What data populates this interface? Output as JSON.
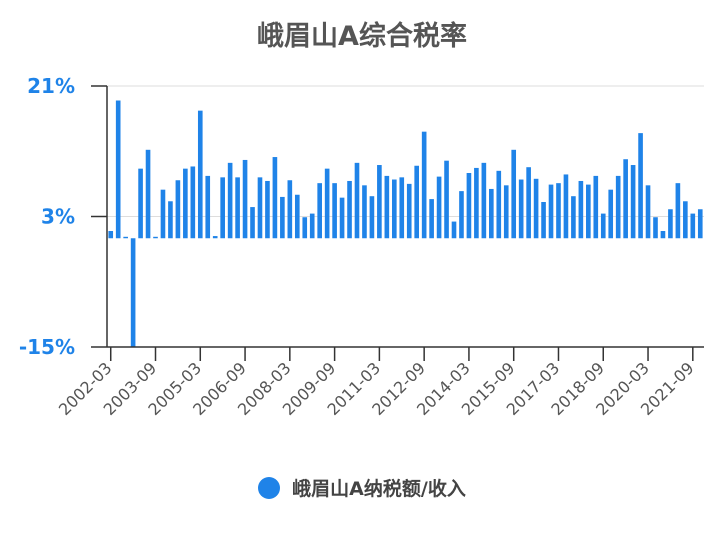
{
  "chart_data": {
    "type": "bar",
    "title": "峨眉山A综合税率",
    "xlabel": "",
    "ylabel": "",
    "ylim": [
      -15,
      21
    ],
    "yticks": [
      "21%",
      "3%",
      "-15%"
    ],
    "x_tick_labels": [
      "2002-03",
      "2003-09",
      "2005-03",
      "2006-09",
      "2008-03",
      "2009-09",
      "2011-03",
      "2012-09",
      "2014-03",
      "2015-09",
      "2017-03",
      "2018-09",
      "2020-03",
      "2021-09"
    ],
    "grid": true,
    "legend_position": "bottom",
    "bar_color": "#1f83e8",
    "series": [
      {
        "name": "峨眉山A纳税额/收入",
        "values": [
          1.0,
          19.0,
          0.2,
          -15.0,
          9.6,
          12.2,
          0.2,
          6.7,
          5.1,
          8.0,
          9.6,
          9.9,
          17.6,
          8.6,
          0.3,
          8.4,
          10.4,
          8.4,
          10.8,
          4.3,
          8.4,
          7.9,
          11.2,
          5.7,
          8.0,
          6.0,
          2.9,
          3.4,
          7.6,
          9.6,
          7.6,
          5.6,
          7.9,
          10.4,
          7.3,
          5.8,
          10.1,
          8.6,
          8.1,
          8.4,
          7.5,
          10.0,
          14.7,
          5.4,
          8.5,
          10.7,
          2.3,
          6.5,
          9.0,
          9.7,
          10.4,
          6.8,
          9.3,
          7.3,
          12.2,
          8.1,
          9.8,
          8.2,
          5.0,
          7.4,
          7.6,
          8.8,
          5.8,
          7.9,
          7.4,
          8.6,
          3.4,
          6.7,
          8.6,
          10.9,
          10.1,
          14.5,
          7.3,
          2.9,
          1.0,
          4.0,
          7.6,
          5.1,
          3.4,
          4.0
        ]
      }
    ]
  }
}
